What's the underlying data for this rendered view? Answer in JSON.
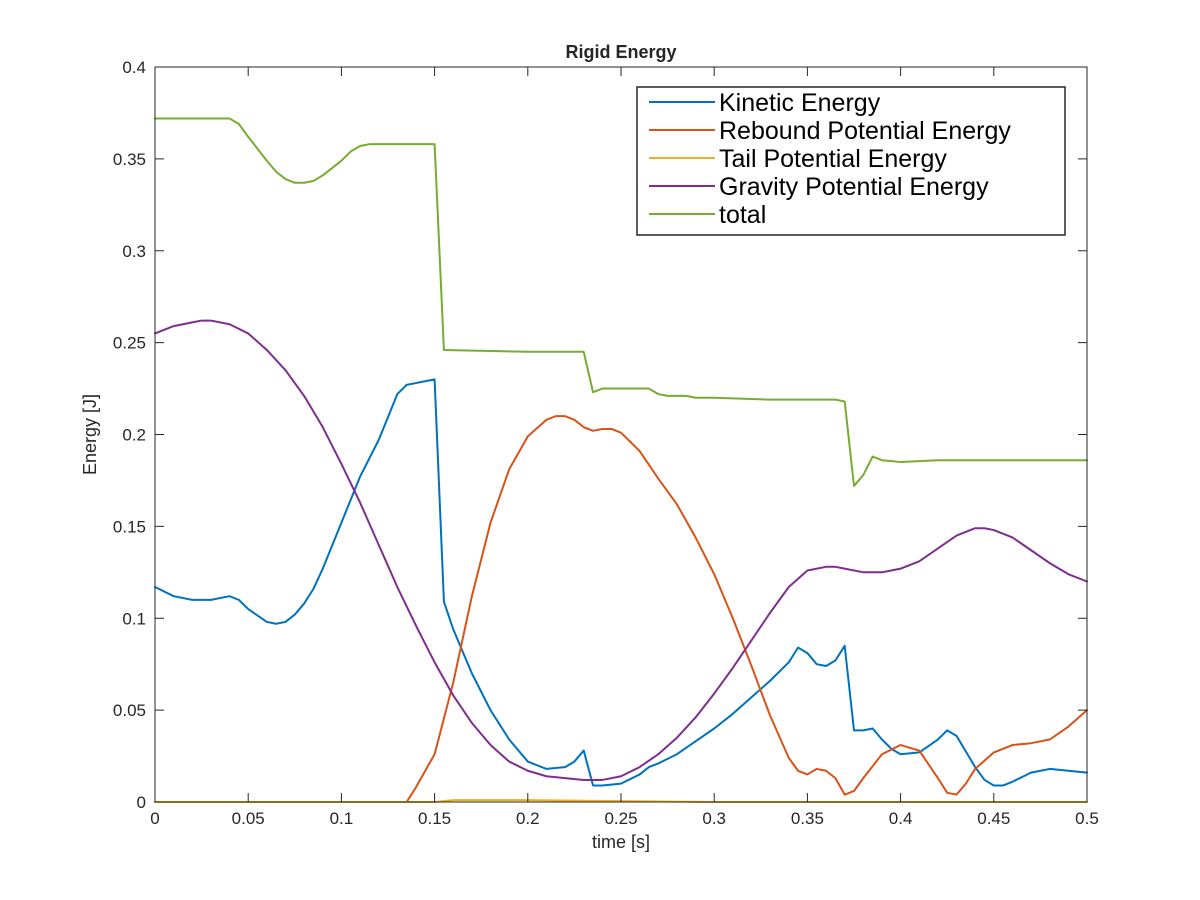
{
  "chart_data": {
    "type": "line",
    "title": "Rigid Energy",
    "xlabel": "time [s]",
    "ylabel": "Energy [J]",
    "xlim": [
      0,
      0.5
    ],
    "ylim": [
      0,
      0.4
    ],
    "xticks": [
      0,
      0.05,
      0.1,
      0.15,
      0.2,
      0.25,
      0.3,
      0.35,
      0.4,
      0.45,
      0.5
    ],
    "xtick_labels": [
      "0",
      "0.05",
      "0.1",
      "0.15",
      "0.2",
      "0.25",
      "0.3",
      "0.35",
      "0.4",
      "0.45",
      "0.5"
    ],
    "yticks": [
      0,
      0.05,
      0.1,
      0.15,
      0.2,
      0.25,
      0.3,
      0.35,
      0.4
    ],
    "ytick_labels": [
      "0",
      "0.05",
      "0.1",
      "0.15",
      "0.2",
      "0.25",
      "0.3",
      "0.35",
      "0.4"
    ],
    "grid": false,
    "box": true,
    "legend_position": "top-right",
    "series": [
      {
        "name": "Kinetic Energy",
        "color": "#0072BD",
        "points": [
          [
            0,
            0.117
          ],
          [
            0.01,
            0.112
          ],
          [
            0.02,
            0.11
          ],
          [
            0.03,
            0.11
          ],
          [
            0.04,
            0.112
          ],
          [
            0.045,
            0.11
          ],
          [
            0.05,
            0.105
          ],
          [
            0.06,
            0.098
          ],
          [
            0.065,
            0.097
          ],
          [
            0.07,
            0.098
          ],
          [
            0.075,
            0.102
          ],
          [
            0.08,
            0.108
          ],
          [
            0.085,
            0.116
          ],
          [
            0.09,
            0.127
          ],
          [
            0.1,
            0.152
          ],
          [
            0.11,
            0.177
          ],
          [
            0.12,
            0.197
          ],
          [
            0.13,
            0.222
          ],
          [
            0.135,
            0.227
          ],
          [
            0.14,
            0.228
          ],
          [
            0.15,
            0.23
          ],
          [
            0.155,
            0.109
          ],
          [
            0.16,
            0.094
          ],
          [
            0.17,
            0.07
          ],
          [
            0.18,
            0.05
          ],
          [
            0.19,
            0.034
          ],
          [
            0.2,
            0.022
          ],
          [
            0.21,
            0.018
          ],
          [
            0.22,
            0.019
          ],
          [
            0.225,
            0.022
          ],
          [
            0.23,
            0.028
          ],
          [
            0.235,
            0.009
          ],
          [
            0.24,
            0.009
          ],
          [
            0.25,
            0.01
          ],
          [
            0.26,
            0.015
          ],
          [
            0.265,
            0.019
          ],
          [
            0.27,
            0.021
          ],
          [
            0.28,
            0.026
          ],
          [
            0.29,
            0.033
          ],
          [
            0.3,
            0.04
          ],
          [
            0.31,
            0.048
          ],
          [
            0.32,
            0.057
          ],
          [
            0.33,
            0.066
          ],
          [
            0.34,
            0.076
          ],
          [
            0.345,
            0.084
          ],
          [
            0.35,
            0.081
          ],
          [
            0.355,
            0.075
          ],
          [
            0.36,
            0.074
          ],
          [
            0.365,
            0.077
          ],
          [
            0.37,
            0.085
          ],
          [
            0.375,
            0.039
          ],
          [
            0.38,
            0.039
          ],
          [
            0.385,
            0.04
          ],
          [
            0.39,
            0.034
          ],
          [
            0.395,
            0.029
          ],
          [
            0.4,
            0.026
          ],
          [
            0.41,
            0.027
          ],
          [
            0.42,
            0.034
          ],
          [
            0.425,
            0.039
          ],
          [
            0.43,
            0.036
          ],
          [
            0.44,
            0.019
          ],
          [
            0.445,
            0.012
          ],
          [
            0.45,
            0.009
          ],
          [
            0.455,
            0.009
          ],
          [
            0.46,
            0.011
          ],
          [
            0.47,
            0.016
          ],
          [
            0.48,
            0.018
          ],
          [
            0.49,
            0.017
          ],
          [
            0.5,
            0.016
          ]
        ]
      },
      {
        "name": "Rebound Potential Energy",
        "color": "#D95319",
        "points": [
          [
            0,
            0
          ],
          [
            0.135,
            0
          ],
          [
            0.14,
            0.008
          ],
          [
            0.15,
            0.026
          ],
          [
            0.16,
            0.065
          ],
          [
            0.17,
            0.112
          ],
          [
            0.18,
            0.152
          ],
          [
            0.19,
            0.181
          ],
          [
            0.2,
            0.199
          ],
          [
            0.21,
            0.208
          ],
          [
            0.215,
            0.21
          ],
          [
            0.22,
            0.21
          ],
          [
            0.225,
            0.208
          ],
          [
            0.23,
            0.204
          ],
          [
            0.235,
            0.202
          ],
          [
            0.24,
            0.203
          ],
          [
            0.245,
            0.203
          ],
          [
            0.25,
            0.201
          ],
          [
            0.26,
            0.191
          ],
          [
            0.27,
            0.176
          ],
          [
            0.28,
            0.162
          ],
          [
            0.29,
            0.144
          ],
          [
            0.3,
            0.124
          ],
          [
            0.31,
            0.1
          ],
          [
            0.32,
            0.074
          ],
          [
            0.33,
            0.047
          ],
          [
            0.34,
            0.024
          ],
          [
            0.345,
            0.017
          ],
          [
            0.35,
            0.015
          ],
          [
            0.355,
            0.018
          ],
          [
            0.36,
            0.017
          ],
          [
            0.365,
            0.013
          ],
          [
            0.37,
            0.004
          ],
          [
            0.375,
            0.006
          ],
          [
            0.38,
            0.013
          ],
          [
            0.39,
            0.026
          ],
          [
            0.4,
            0.031
          ],
          [
            0.41,
            0.028
          ],
          [
            0.42,
            0.013
          ],
          [
            0.425,
            0.005
          ],
          [
            0.43,
            0.004
          ],
          [
            0.435,
            0.01
          ],
          [
            0.44,
            0.018
          ],
          [
            0.45,
            0.027
          ],
          [
            0.46,
            0.031
          ],
          [
            0.47,
            0.032
          ],
          [
            0.48,
            0.034
          ],
          [
            0.49,
            0.041
          ],
          [
            0.5,
            0.05
          ]
        ]
      },
      {
        "name": "Tail Potential Energy",
        "color": "#EDB120",
        "points": [
          [
            0,
            0
          ],
          [
            0.15,
            0
          ],
          [
            0.16,
            0.001
          ],
          [
            0.2,
            0.001
          ],
          [
            0.25,
            0.0005
          ],
          [
            0.3,
            0
          ],
          [
            0.5,
            0
          ]
        ]
      },
      {
        "name": "Gravity Potential Energy",
        "color": "#7E2F8E",
        "points": [
          [
            0,
            0.255
          ],
          [
            0.01,
            0.259
          ],
          [
            0.02,
            0.261
          ],
          [
            0.025,
            0.262
          ],
          [
            0.03,
            0.262
          ],
          [
            0.04,
            0.26
          ],
          [
            0.05,
            0.255
          ],
          [
            0.06,
            0.246
          ],
          [
            0.07,
            0.235
          ],
          [
            0.08,
            0.221
          ],
          [
            0.09,
            0.204
          ],
          [
            0.1,
            0.184
          ],
          [
            0.11,
            0.163
          ],
          [
            0.12,
            0.14
          ],
          [
            0.13,
            0.117
          ],
          [
            0.14,
            0.096
          ],
          [
            0.15,
            0.076
          ],
          [
            0.16,
            0.058
          ],
          [
            0.17,
            0.043
          ],
          [
            0.18,
            0.031
          ],
          [
            0.19,
            0.022
          ],
          [
            0.2,
            0.017
          ],
          [
            0.21,
            0.014
          ],
          [
            0.22,
            0.013
          ],
          [
            0.23,
            0.012
          ],
          [
            0.24,
            0.012
          ],
          [
            0.25,
            0.014
          ],
          [
            0.26,
            0.019
          ],
          [
            0.27,
            0.026
          ],
          [
            0.28,
            0.035
          ],
          [
            0.29,
            0.046
          ],
          [
            0.3,
            0.059
          ],
          [
            0.31,
            0.073
          ],
          [
            0.32,
            0.088
          ],
          [
            0.33,
            0.103
          ],
          [
            0.34,
            0.117
          ],
          [
            0.35,
            0.126
          ],
          [
            0.36,
            0.128
          ],
          [
            0.365,
            0.128
          ],
          [
            0.37,
            0.127
          ],
          [
            0.38,
            0.125
          ],
          [
            0.39,
            0.125
          ],
          [
            0.4,
            0.127
          ],
          [
            0.41,
            0.131
          ],
          [
            0.42,
            0.138
          ],
          [
            0.43,
            0.145
          ],
          [
            0.44,
            0.149
          ],
          [
            0.445,
            0.149
          ],
          [
            0.45,
            0.148
          ],
          [
            0.46,
            0.144
          ],
          [
            0.47,
            0.137
          ],
          [
            0.48,
            0.13
          ],
          [
            0.49,
            0.124
          ],
          [
            0.5,
            0.12
          ]
        ]
      },
      {
        "name": "total",
        "color": "#77AC30",
        "points": [
          [
            0,
            0.372
          ],
          [
            0.04,
            0.372
          ],
          [
            0.045,
            0.369
          ],
          [
            0.05,
            0.362
          ],
          [
            0.06,
            0.349
          ],
          [
            0.065,
            0.343
          ],
          [
            0.07,
            0.339
          ],
          [
            0.075,
            0.337
          ],
          [
            0.08,
            0.337
          ],
          [
            0.085,
            0.338
          ],
          [
            0.09,
            0.341
          ],
          [
            0.1,
            0.349
          ],
          [
            0.105,
            0.354
          ],
          [
            0.11,
            0.357
          ],
          [
            0.115,
            0.358
          ],
          [
            0.12,
            0.358
          ],
          [
            0.15,
            0.358
          ],
          [
            0.155,
            0.246
          ],
          [
            0.2,
            0.245
          ],
          [
            0.23,
            0.245
          ],
          [
            0.235,
            0.223
          ],
          [
            0.24,
            0.225
          ],
          [
            0.26,
            0.225
          ],
          [
            0.265,
            0.225
          ],
          [
            0.27,
            0.222
          ],
          [
            0.275,
            0.221
          ],
          [
            0.285,
            0.221
          ],
          [
            0.29,
            0.22
          ],
          [
            0.3,
            0.22
          ],
          [
            0.33,
            0.219
          ],
          [
            0.365,
            0.219
          ],
          [
            0.37,
            0.218
          ],
          [
            0.375,
            0.172
          ],
          [
            0.38,
            0.178
          ],
          [
            0.385,
            0.188
          ],
          [
            0.39,
            0.186
          ],
          [
            0.4,
            0.185
          ],
          [
            0.42,
            0.186
          ],
          [
            0.5,
            0.186
          ]
        ]
      }
    ]
  }
}
